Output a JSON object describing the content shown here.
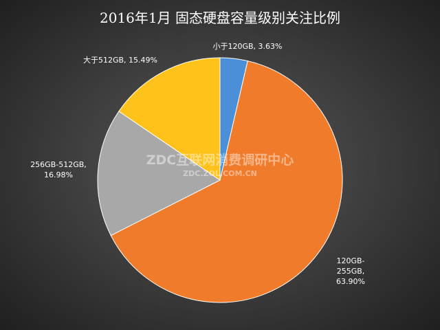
{
  "chart_data": {
    "type": "pie",
    "title": "2016年1月 固态硬盘容量级别关注比例",
    "values": [
      3.63,
      63.9,
      16.98,
      15.49
    ],
    "value_labels": [
      "小于120GB, 3.63%",
      "120GB-255GB, 63.90%",
      "256GB-512GB, 16.98%",
      "大于512GB, 15.49%"
    ],
    "colors": [
      "#4a8fd8",
      "#f07b2a",
      "#a8a8a8",
      "#ffc21a"
    ],
    "watermark": "ZDC互联网消费调研中心",
    "watermark_url": "ZDC.ZOL.COM.CN"
  }
}
